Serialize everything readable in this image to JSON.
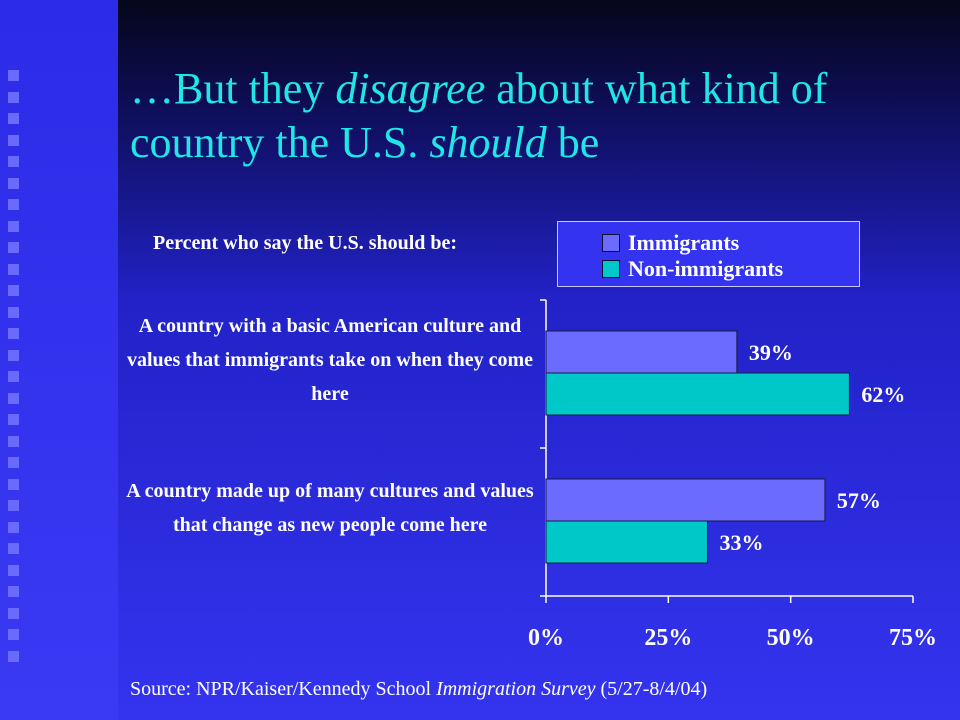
{
  "colors": {
    "title": "#20e6e6",
    "immigrants": "#6b6bff",
    "non_immigrants": "#00c8c8",
    "axis": "#ffffff",
    "text": "#ffffff"
  },
  "title": {
    "part1": "…But they ",
    "italic1": "disagree",
    "part2": " about what kind of country the U.S. ",
    "italic2": "should",
    "part3": " be"
  },
  "chart_data": {
    "type": "bar",
    "orientation": "horizontal",
    "subtitle": "Percent who say the U.S. should be:",
    "categories": [
      "A country with a basic American culture and values that immigrants take on when they come here",
      "A country made up of many cultures and values that change as new people come here"
    ],
    "series": [
      {
        "name": "Immigrants",
        "values": [
          39,
          57
        ],
        "labels": [
          "39%",
          "57%"
        ]
      },
      {
        "name": "Non-immigrants",
        "values": [
          62,
          33
        ],
        "labels": [
          "62%",
          "33%"
        ]
      }
    ],
    "xlim": [
      0,
      75
    ],
    "xticks": [
      0,
      25,
      50,
      75
    ],
    "xtick_labels": [
      "0%",
      "25%",
      "50%",
      "75%"
    ],
    "legend_position": "top-right",
    "grid": false
  },
  "source": {
    "prefix": "Source: NPR/Kaiser/Kennedy School ",
    "italic": "Immigration Survey",
    "suffix": " (5/27-8/4/04)"
  }
}
